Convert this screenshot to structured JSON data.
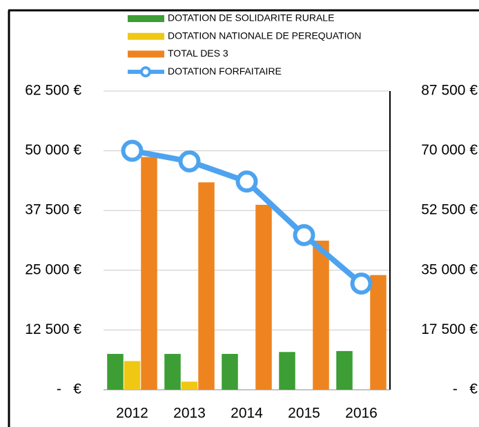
{
  "chart_data": {
    "type": "bar",
    "categories": [
      "2012",
      "2013",
      "2014",
      "2015",
      "2016"
    ],
    "series": [
      {
        "name": "DOTATION DE SOLIDARITE RURALE",
        "color": "#3c9e34",
        "values": [
          7500,
          7500,
          7500,
          7900,
          8100
        ]
      },
      {
        "name": "DOTATION NATIONALE DE PEREQUATION",
        "color": "#f0c814",
        "values": [
          6000,
          1700,
          0,
          0,
          0
        ]
      },
      {
        "name": "TOTAL DES 3",
        "color": "#ee8420",
        "values": [
          48700,
          43400,
          38700,
          31200,
          24000
        ]
      },
      {
        "name": "DOTATION FORFAITAIRE",
        "color": "#4da3ef",
        "type": "line",
        "axis": "y2",
        "values": [
          70000,
          66900,
          61000,
          45300,
          31100
        ]
      }
    ],
    "ylim": [
      0,
      62500
    ],
    "yticks": [
      {
        "value": 0,
        "label": "-   €"
      },
      {
        "value": 12500,
        "label": "12 500 €"
      },
      {
        "value": 25000,
        "label": "25 000 €"
      },
      {
        "value": 37500,
        "label": "37 500 €"
      },
      {
        "value": 50000,
        "label": "50 000 €"
      },
      {
        "value": 62500,
        "label": "62 500 €"
      }
    ],
    "y2lim": [
      0,
      87500
    ],
    "y2ticks": [
      {
        "value": 0,
        "label": "-   €"
      },
      {
        "value": 17500,
        "label": "17 500 €"
      },
      {
        "value": 35000,
        "label": "35 000 €"
      },
      {
        "value": 52500,
        "label": "52 500 €"
      },
      {
        "value": 70000,
        "label": "70 000 €"
      },
      {
        "value": 87500,
        "label": "87 500 €"
      }
    ],
    "grid": true
  }
}
